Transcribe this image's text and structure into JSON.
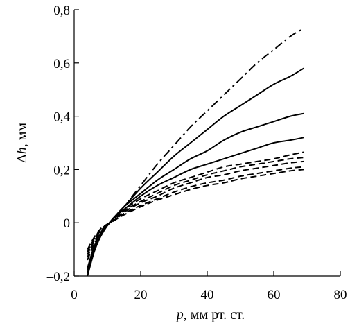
{
  "chart_data": {
    "type": "line",
    "xlabel": {
      "var": "p",
      "rest": ", мм рт. ст."
    },
    "ylabel": {
      "var": "h",
      "prefix": "Δ",
      "rest": ", мм"
    },
    "xlim": [
      0,
      80
    ],
    "ylim": [
      -0.2,
      0.8
    ],
    "x_ticks": [
      {
        "value": 0,
        "label": "0"
      },
      {
        "value": 20,
        "label": "20"
      },
      {
        "value": 40,
        "label": "40"
      },
      {
        "value": 60,
        "label": "60"
      },
      {
        "value": 80,
        "label": "80"
      }
    ],
    "y_ticks": [
      {
        "value": -0.2,
        "label": "–0,2"
      },
      {
        "value": 0,
        "label": "0"
      },
      {
        "value": 0.2,
        "label": "0,2"
      },
      {
        "value": 0.4,
        "label": "0,4"
      },
      {
        "value": 0.6,
        "label": "0,6"
      },
      {
        "value": 0.8,
        "label": "0,8"
      }
    ],
    "grid": false,
    "legend": "none",
    "series": [
      {
        "style": "dashdot",
        "x": [
          4,
          6,
          8,
          10,
          12,
          15,
          20,
          25,
          30,
          35,
          40,
          45,
          50,
          55,
          60,
          65,
          69
        ],
        "y": [
          -0.18,
          -0.1,
          -0.05,
          -0.01,
          0.02,
          0.06,
          0.14,
          0.22,
          0.29,
          0.36,
          0.42,
          0.48,
          0.54,
          0.6,
          0.65,
          0.7,
          0.73
        ]
      },
      {
        "style": "solid",
        "x": [
          4,
          6,
          8,
          10,
          12,
          15,
          20,
          25,
          30,
          35,
          40,
          45,
          50,
          55,
          60,
          65,
          69
        ],
        "y": [
          -0.2,
          -0.11,
          -0.05,
          -0.01,
          0.02,
          0.06,
          0.13,
          0.19,
          0.25,
          0.3,
          0.35,
          0.4,
          0.44,
          0.48,
          0.52,
          0.55,
          0.58
        ]
      },
      {
        "style": "solid",
        "x": [
          4,
          6,
          8,
          10,
          12,
          15,
          20,
          25,
          30,
          35,
          40,
          45,
          50,
          55,
          60,
          65,
          69
        ],
        "y": [
          -0.19,
          -0.1,
          -0.05,
          -0.01,
          0.02,
          0.06,
          0.11,
          0.16,
          0.2,
          0.24,
          0.27,
          0.31,
          0.34,
          0.36,
          0.38,
          0.4,
          0.41
        ]
      },
      {
        "style": "solid",
        "x": [
          4,
          6,
          8,
          10,
          12,
          15,
          20,
          25,
          30,
          35,
          40,
          45,
          50,
          55,
          60,
          65,
          69
        ],
        "y": [
          -0.17,
          -0.09,
          -0.04,
          -0.01,
          0.02,
          0.05,
          0.1,
          0.14,
          0.17,
          0.2,
          0.22,
          0.24,
          0.26,
          0.28,
          0.3,
          0.31,
          0.32
        ]
      },
      {
        "style": "dashed",
        "x": [
          4,
          6,
          8,
          10,
          12,
          15,
          20,
          25,
          30,
          35,
          40,
          45,
          50,
          55,
          60,
          65,
          69
        ],
        "y": [
          -0.14,
          -0.08,
          -0.04,
          -0.01,
          0.02,
          0.05,
          0.09,
          0.12,
          0.15,
          0.17,
          0.19,
          0.21,
          0.22,
          0.23,
          0.24,
          0.255,
          0.265
        ]
      },
      {
        "style": "dashed",
        "x": [
          4,
          6,
          8,
          10,
          12,
          15,
          20,
          25,
          30,
          35,
          40,
          45,
          50,
          55,
          60,
          65,
          69
        ],
        "y": [
          -0.13,
          -0.07,
          -0.035,
          -0.01,
          0.015,
          0.045,
          0.08,
          0.11,
          0.14,
          0.16,
          0.18,
          0.195,
          0.21,
          0.22,
          0.23,
          0.24,
          0.245
        ]
      },
      {
        "style": "dashed",
        "x": [
          4,
          6,
          8,
          10,
          12,
          15,
          20,
          25,
          30,
          35,
          40,
          45,
          50,
          55,
          60,
          65,
          69
        ],
        "y": [
          -0.12,
          -0.065,
          -0.03,
          -0.008,
          0.012,
          0.04,
          0.075,
          0.1,
          0.13,
          0.15,
          0.17,
          0.18,
          0.195,
          0.205,
          0.215,
          0.225,
          0.23
        ]
      },
      {
        "style": "dashed",
        "x": [
          4,
          6,
          8,
          10,
          12,
          15,
          20,
          25,
          30,
          35,
          40,
          45,
          50,
          55,
          60,
          65,
          69
        ],
        "y": [
          -0.11,
          -0.06,
          -0.025,
          -0.006,
          0.01,
          0.035,
          0.065,
          0.09,
          0.115,
          0.135,
          0.15,
          0.16,
          0.175,
          0.185,
          0.195,
          0.205,
          0.21
        ]
      },
      {
        "style": "dashed",
        "x": [
          4,
          6,
          8,
          10,
          12,
          15,
          20,
          25,
          30,
          35,
          40,
          45,
          50,
          55,
          60,
          65,
          69
        ],
        "y": [
          -0.1,
          -0.055,
          -0.022,
          -0.005,
          0.008,
          0.03,
          0.06,
          0.085,
          0.105,
          0.125,
          0.14,
          0.15,
          0.165,
          0.175,
          0.185,
          0.195,
          0.2
        ]
      }
    ]
  }
}
